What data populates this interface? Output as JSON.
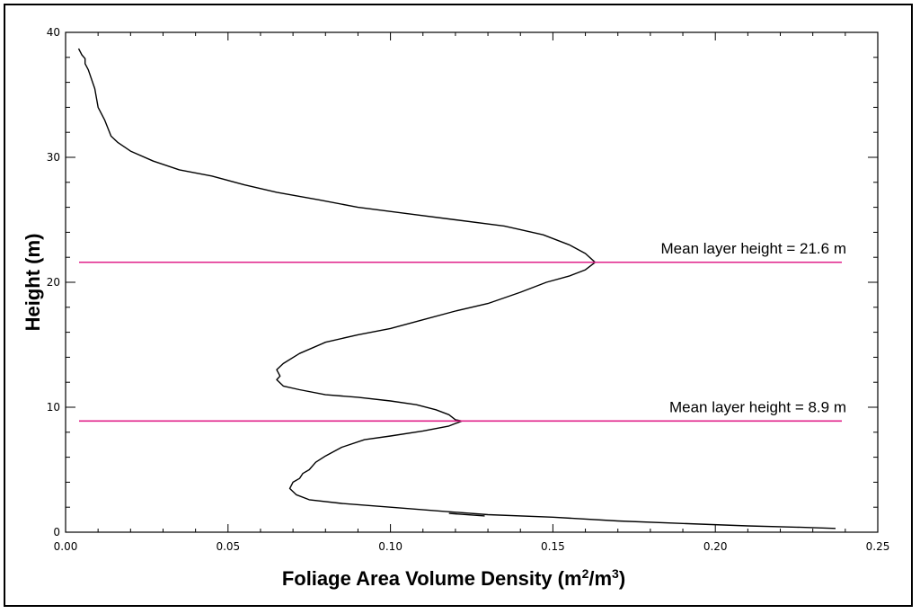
{
  "chart_data": {
    "type": "line",
    "title": "",
    "xlabel_parts": [
      "Foliage Area Volume Density (m",
      "2",
      "/m",
      "3",
      ")"
    ],
    "ylabel": "Height (m)",
    "xlim": [
      0.0,
      0.25
    ],
    "ylim": [
      0,
      40
    ],
    "x_ticks": [
      0.0,
      0.05,
      0.1,
      0.15,
      0.2,
      0.25
    ],
    "x_tick_labels": [
      "0.00",
      "0.05",
      "0.10",
      "0.15",
      "0.20",
      "0.25"
    ],
    "y_ticks": [
      0,
      10,
      20,
      30,
      40
    ],
    "y_tick_labels": [
      "0",
      "10",
      "20",
      "30",
      "40"
    ],
    "grid": false,
    "legend": "none",
    "series": [
      {
        "color": "#000000",
        "points": [
          [
            0.004,
            38.7
          ],
          [
            0.005,
            38.2
          ],
          [
            0.006,
            37.9
          ],
          [
            0.006,
            37.5
          ],
          [
            0.007,
            37.0
          ],
          [
            0.009,
            35.5
          ],
          [
            0.01,
            34.0
          ],
          [
            0.012,
            33.0
          ],
          [
            0.014,
            31.7
          ],
          [
            0.016,
            31.2
          ],
          [
            0.02,
            30.5
          ],
          [
            0.027,
            29.7
          ],
          [
            0.035,
            29.0
          ],
          [
            0.045,
            28.5
          ],
          [
            0.055,
            27.8
          ],
          [
            0.065,
            27.2
          ],
          [
            0.078,
            26.6
          ],
          [
            0.09,
            26.0
          ],
          [
            0.105,
            25.5
          ],
          [
            0.12,
            25.0
          ],
          [
            0.135,
            24.5
          ],
          [
            0.147,
            23.8
          ],
          [
            0.155,
            23.0
          ],
          [
            0.16,
            22.3
          ],
          [
            0.163,
            21.6
          ],
          [
            0.16,
            21.0
          ],
          [
            0.155,
            20.5
          ],
          [
            0.148,
            20.0
          ],
          [
            0.14,
            19.2
          ],
          [
            0.13,
            18.3
          ],
          [
            0.12,
            17.7
          ],
          [
            0.11,
            17.0
          ],
          [
            0.1,
            16.3
          ],
          [
            0.09,
            15.8
          ],
          [
            0.08,
            15.2
          ],
          [
            0.072,
            14.3
          ],
          [
            0.067,
            13.5
          ],
          [
            0.065,
            13.0
          ],
          [
            0.066,
            12.5
          ],
          [
            0.065,
            12.2
          ],
          [
            0.067,
            11.7
          ],
          [
            0.072,
            11.4
          ],
          [
            0.08,
            11.0
          ],
          [
            0.09,
            10.8
          ],
          [
            0.1,
            10.5
          ],
          [
            0.108,
            10.2
          ],
          [
            0.114,
            9.8
          ],
          [
            0.118,
            9.4
          ],
          [
            0.12,
            9.0
          ],
          [
            0.122,
            8.9
          ],
          [
            0.118,
            8.5
          ],
          [
            0.11,
            8.1
          ],
          [
            0.1,
            7.7
          ],
          [
            0.092,
            7.4
          ],
          [
            0.085,
            6.8
          ],
          [
            0.08,
            6.1
          ],
          [
            0.077,
            5.6
          ],
          [
            0.075,
            5.0
          ],
          [
            0.073,
            4.7
          ],
          [
            0.072,
            4.3
          ],
          [
            0.07,
            4.0
          ],
          [
            0.069,
            3.5
          ],
          [
            0.071,
            3.0
          ],
          [
            0.075,
            2.6
          ],
          [
            0.085,
            2.3
          ],
          [
            0.1,
            2.0
          ],
          [
            0.115,
            1.7
          ],
          [
            0.13,
            1.4
          ],
          [
            0.15,
            1.2
          ],
          [
            0.17,
            0.9
          ],
          [
            0.19,
            0.7
          ],
          [
            0.21,
            0.5
          ],
          [
            0.225,
            0.4
          ],
          [
            0.237,
            0.3
          ]
        ]
      },
      {
        "color": "#000000",
        "points": [
          [
            0.118,
            1.5
          ],
          [
            0.129,
            1.3
          ]
        ]
      }
    ],
    "reference_lines": [
      {
        "y": 21.6,
        "color": "#e0218a",
        "label": "Mean layer height = 21.6 m"
      },
      {
        "y": 8.9,
        "color": "#e0218a",
        "label": "Mean layer height = 8.9 m"
      }
    ]
  }
}
